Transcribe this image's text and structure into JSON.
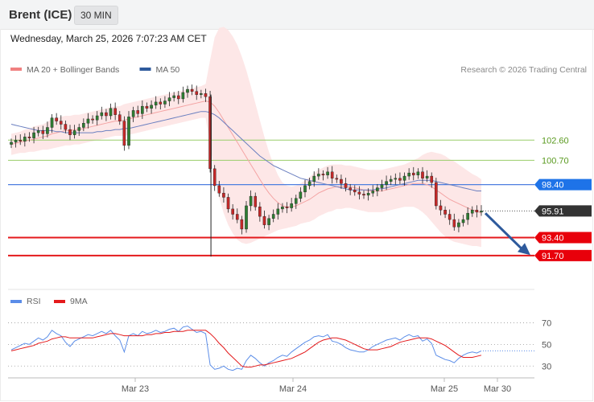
{
  "header": {
    "instrument": "Brent (ICE)",
    "timeframe": "30 MIN",
    "datetime": "Wednesday, March 25, 2026 7:07:23 AM CET"
  },
  "main_legend": [
    {
      "label": "MA 20 + Bollinger Bands",
      "color": "#f08080"
    },
    {
      "label": "MA 50",
      "color": "#2e5a9c"
    }
  ],
  "rsi_legend": [
    {
      "label": "RSI",
      "color": "#5b8de8"
    },
    {
      "label": "9MA",
      "color": "#e41a1c"
    }
  ],
  "credit": "Research © 2026 Trading Central",
  "colors": {
    "up": "#2e7d32",
    "down": "#c62828",
    "band": "#fde3e3",
    "ma20": "#f4a4a4",
    "ma50": "#6a7fc0",
    "resistance": "#9acd6a",
    "pivot": "#4d7fe0",
    "support": "#e41a1c",
    "current": "#333333"
  },
  "chart_data": [
    {
      "type": "candlestick",
      "x_axis_labels": [
        "Mar 23",
        "Mar 24",
        "Mar 25",
        "Mar 30"
      ],
      "ylim": [
        88.5,
        109.0
      ],
      "levels": [
        {
          "value": 102.6,
          "label": "102.60",
          "kind": "resistance"
        },
        {
          "value": 100.7,
          "label": "100.70",
          "kind": "resistance"
        },
        {
          "value": 98.4,
          "label": "98.40",
          "kind": "pivot"
        },
        {
          "value": 95.91,
          "label": "95.91",
          "kind": "current"
        },
        {
          "value": 93.4,
          "label": "93.40",
          "kind": "support"
        },
        {
          "value": 91.7,
          "label": "91.70",
          "kind": "support"
        }
      ],
      "close": [
        102.4,
        102.6,
        102.5,
        102.9,
        102.8,
        103.3,
        103.5,
        103.2,
        103.8,
        104.7,
        104.4,
        104.1,
        103.6,
        103.1,
        103.5,
        103.8,
        104.2,
        104.6,
        104.5,
        104.9,
        105.2,
        104.9,
        105.6,
        105.0,
        104.4,
        102.1,
        104.8,
        105.4,
        105.1,
        105.8,
        105.6,
        105.9,
        106.2,
        106.0,
        106.3,
        106.6,
        106.8,
        106.5,
        107.1,
        107.4,
        107.2,
        106.9,
        107.0,
        106.7,
        99.9,
        98.3,
        97.6,
        97.2,
        96.1,
        95.6,
        95.1,
        94.2,
        96.4,
        97.3,
        96.3,
        95.4,
        94.6,
        95.2,
        95.6,
        96.1,
        96.3,
        96.2,
        96.6,
        97.1,
        97.7,
        98.3,
        98.7,
        99.2,
        99.4,
        99.3,
        99.6,
        99.0,
        98.9,
        98.5,
        98.1,
        97.9,
        97.7,
        97.5,
        97.4,
        97.6,
        97.8,
        98.1,
        98.4,
        98.7,
        98.9,
        99.0,
        98.8,
        99.2,
        99.5,
        99.3,
        99.6,
        99.0,
        99.2,
        98.6,
        96.4,
        96.0,
        95.6,
        95.1,
        94.4,
        94.8,
        95.1,
        95.7,
        96.0,
        95.8,
        95.91
      ],
      "ma20": [
        102.2,
        102.3,
        102.4,
        102.5,
        102.6,
        102.7,
        102.8,
        102.9,
        103.0,
        103.2,
        103.3,
        103.4,
        103.5,
        103.5,
        103.6,
        103.6,
        103.7,
        103.8,
        103.9,
        104.0,
        104.1,
        104.2,
        104.3,
        104.4,
        104.4,
        104.5,
        104.6,
        104.7,
        104.8,
        104.9,
        105.0,
        105.1,
        105.2,
        105.3,
        105.4,
        105.5,
        105.6,
        105.7,
        105.8,
        105.9,
        106.0,
        106.1,
        106.2,
        106.3,
        106.2,
        105.8,
        105.2,
        104.5,
        103.8,
        103.1,
        102.4,
        101.7,
        101.0,
        100.3,
        99.6,
        98.9,
        98.2,
        97.6,
        97.1,
        96.7,
        96.4,
        96.3,
        96.3,
        96.4,
        96.6,
        96.8,
        97.0,
        97.3,
        97.6,
        97.8,
        98.0,
        98.1,
        98.2,
        98.2,
        98.2,
        98.2,
        98.1,
        98.0,
        97.9,
        97.8,
        97.8,
        97.8,
        97.8,
        97.9,
        98.0,
        98.1,
        98.2,
        98.3,
        98.4,
        98.5,
        98.5,
        98.5,
        98.4,
        98.2,
        97.9,
        97.6,
        97.3,
        97.0,
        96.8,
        96.6,
        96.4,
        96.2,
        96.0,
        95.9,
        95.7
      ],
      "ma50": [
        104.1,
        104.0,
        103.9,
        103.8,
        103.7,
        103.6,
        103.5,
        103.5,
        103.5,
        103.5,
        103.4,
        103.4,
        103.3,
        103.3,
        103.3,
        103.3,
        103.3,
        103.3,
        103.3,
        103.4,
        103.4,
        103.5,
        103.5,
        103.6,
        103.6,
        103.7,
        103.7,
        103.8,
        103.9,
        104.0,
        104.1,
        104.2,
        104.3,
        104.4,
        104.5,
        104.6,
        104.7,
        104.8,
        104.9,
        105.0,
        105.1,
        105.2,
        105.3,
        105.3,
        105.2,
        105.0,
        104.7,
        104.3,
        103.9,
        103.5,
        103.1,
        102.7,
        102.3,
        101.9,
        101.5,
        101.1,
        100.8,
        100.5,
        100.2,
        100.0,
        99.8,
        99.6,
        99.4,
        99.2,
        99.0,
        98.9,
        98.8,
        98.7,
        98.6,
        98.5,
        98.4,
        98.3,
        98.2,
        98.1,
        98.0,
        97.9,
        97.9,
        97.9,
        97.9,
        97.9,
        97.9,
        98.0,
        98.0,
        98.1,
        98.2,
        98.3,
        98.4,
        98.5,
        98.6,
        98.7,
        98.8,
        98.8,
        98.8,
        98.8,
        98.7,
        98.6,
        98.5,
        98.4,
        98.3,
        98.2,
        98.1,
        98.0,
        97.9,
        97.8,
        97.8
      ],
      "bb_width": [
        1.0,
        1.0,
        1.0,
        1.1,
        1.1,
        1.2,
        1.2,
        1.2,
        1.3,
        1.4,
        1.4,
        1.4,
        1.4,
        1.4,
        1.4,
        1.4,
        1.4,
        1.4,
        1.4,
        1.4,
        1.4,
        1.4,
        1.4,
        1.4,
        1.4,
        1.5,
        1.5,
        1.5,
        1.5,
        1.5,
        1.5,
        1.5,
        1.5,
        1.5,
        1.5,
        1.5,
        1.5,
        1.5,
        1.5,
        1.5,
        1.5,
        1.5,
        1.5,
        1.6,
        4.0,
        6.5,
        8.0,
        8.8,
        9.2,
        9.3,
        9.2,
        8.8,
        8.2,
        7.4,
        6.5,
        5.6,
        4.7,
        3.9,
        3.2,
        2.6,
        2.2,
        2.0,
        1.9,
        1.9,
        1.9,
        2.0,
        2.1,
        2.2,
        2.2,
        2.2,
        2.2,
        2.2,
        2.1,
        2.1,
        2.0,
        2.0,
        2.0,
        2.0,
        2.0,
        2.0,
        2.0,
        2.0,
        2.0,
        2.0,
        2.0,
        2.0,
        2.0,
        2.0,
        2.1,
        2.2,
        2.4,
        2.7,
        3.0,
        3.3,
        3.5,
        3.7,
        3.8,
        3.8,
        3.8,
        3.7,
        3.6,
        3.5,
        3.4,
        3.3,
        3.2
      ]
    },
    {
      "type": "line",
      "name": "RSI",
      "ylim": [
        25,
        77
      ],
      "yticks": [
        30,
        50,
        70
      ],
      "rsi": [
        45,
        47,
        49,
        51,
        50,
        53,
        56,
        54,
        57,
        63,
        60,
        58,
        52,
        48,
        53,
        55,
        57,
        59,
        58,
        60,
        62,
        60,
        63,
        58,
        54,
        43,
        58,
        60,
        58,
        62,
        60,
        61,
        63,
        61,
        62,
        64,
        65,
        62,
        66,
        67,
        64,
        61,
        62,
        60,
        31,
        27,
        28,
        30,
        27,
        26,
        28,
        27,
        35,
        40,
        37,
        33,
        30,
        33,
        35,
        38,
        40,
        39,
        43,
        46,
        49,
        52,
        54,
        57,
        58,
        57,
        59,
        53,
        52,
        50,
        47,
        45,
        44,
        43,
        43,
        45,
        48,
        50,
        52,
        54,
        55,
        56,
        54,
        57,
        59,
        57,
        58,
        53,
        55,
        51,
        40,
        38,
        36,
        35,
        33,
        37,
        40,
        42,
        43,
        42,
        44
      ],
      "ma9": [
        44,
        45,
        46,
        47,
        48,
        49,
        51,
        52,
        53,
        55,
        56,
        57,
        57,
        56,
        56,
        56,
        56,
        56,
        56,
        57,
        58,
        59,
        60,
        60,
        59,
        58,
        58,
        58,
        58,
        58,
        59,
        59,
        60,
        60,
        61,
        61,
        62,
        62,
        62,
        63,
        63,
        63,
        63,
        63,
        60,
        56,
        51,
        47,
        42,
        38,
        34,
        30,
        29,
        29,
        30,
        31,
        31,
        32,
        33,
        34,
        35,
        36,
        37,
        39,
        41,
        43,
        46,
        49,
        52,
        54,
        55,
        56,
        56,
        55,
        54,
        52,
        50,
        48,
        46,
        45,
        45,
        45,
        46,
        47,
        48,
        50,
        52,
        53,
        54,
        55,
        56,
        56,
        56,
        55,
        53,
        51,
        49,
        46,
        43,
        40,
        38,
        38,
        38,
        39,
        40
      ]
    }
  ]
}
